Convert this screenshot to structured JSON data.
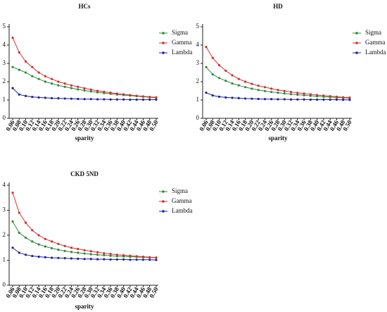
{
  "chart_data": [
    {
      "type": "line",
      "title": "HCs",
      "x_label": "sparity",
      "x": [
        0.06,
        0.08,
        0.1,
        0.12,
        0.14,
        0.16,
        0.18,
        0.2,
        0.22,
        0.24,
        0.26,
        0.28,
        0.3,
        0.32,
        0.34,
        0.36,
        0.38,
        0.4,
        0.42,
        0.44,
        0.46,
        0.48,
        0.5
      ],
      "xlim": [
        0.06,
        0.5
      ],
      "xticks": [
        0.06,
        0.08,
        {
          "value": 0.1,
          "label": "0.10"
        },
        0.12,
        0.14,
        0.16,
        0.18,
        {
          "value": 0.2,
          "label": "0.20"
        },
        0.22,
        0.24,
        0.26,
        0.28,
        {
          "value": 0.3,
          "label": "0.30"
        },
        0.32,
        0.34,
        0.36,
        0.38,
        {
          "value": 0.4,
          "label": "0.40"
        },
        0.42,
        0.44,
        0.46,
        0.48,
        {
          "value": 0.5,
          "label": "0.50"
        }
      ],
      "ylim": [
        0,
        5
      ],
      "yticks": [
        0,
        1,
        2,
        3,
        4,
        5
      ],
      "series": [
        {
          "name": "Sigma",
          "color": "#2e8b3e",
          "values": [
            2.8,
            2.65,
            2.5,
            2.3,
            2.15,
            2.0,
            1.9,
            1.8,
            1.72,
            1.65,
            1.58,
            1.52,
            1.47,
            1.42,
            1.38,
            1.34,
            1.3,
            1.27,
            1.24,
            1.21,
            1.18,
            1.15,
            1.12
          ]
        },
        {
          "name": "Gamma",
          "color": "#d03030",
          "values": [
            4.4,
            3.6,
            3.1,
            2.8,
            2.5,
            2.3,
            2.15,
            2.0,
            1.9,
            1.8,
            1.72,
            1.64,
            1.57,
            1.5,
            1.45,
            1.4,
            1.35,
            1.31,
            1.27,
            1.23,
            1.2,
            1.17,
            1.15
          ]
        },
        {
          "name": "Lambda",
          "color": "#2020a0",
          "values": [
            1.65,
            1.3,
            1.22,
            1.17,
            1.14,
            1.12,
            1.1,
            1.09,
            1.08,
            1.07,
            1.06,
            1.05,
            1.05,
            1.04,
            1.04,
            1.03,
            1.03,
            1.03,
            1.02,
            1.02,
            1.02,
            1.02,
            1.02
          ]
        }
      ]
    },
    {
      "type": "line",
      "title": "HD",
      "x_label": "sparity",
      "x": [
        0.06,
        0.08,
        0.1,
        0.12,
        0.14,
        0.16,
        0.18,
        0.2,
        0.22,
        0.24,
        0.26,
        0.28,
        0.3,
        0.32,
        0.34,
        0.36,
        0.38,
        0.4,
        0.42,
        0.44,
        0.46,
        0.48,
        0.5
      ],
      "xlim": [
        0.06,
        0.5
      ],
      "xticks": [
        0.06,
        0.08,
        {
          "value": 0.1,
          "label": "0.10"
        },
        0.12,
        0.14,
        0.16,
        0.18,
        {
          "value": 0.2,
          "label": "0.20"
        },
        0.22,
        0.24,
        0.26,
        0.28,
        {
          "value": 0.3,
          "label": "0.30"
        },
        0.32,
        0.34,
        0.36,
        0.38,
        {
          "value": 0.4,
          "label": "0.40"
        },
        0.42,
        0.44,
        0.46,
        0.48,
        {
          "value": 0.5,
          "label": "0.50"
        }
      ],
      "ylim": [
        0,
        5
      ],
      "yticks": [
        0,
        1,
        2,
        3,
        4,
        5
      ],
      "series": [
        {
          "name": "Sigma",
          "color": "#2e8b3e",
          "values": [
            2.8,
            2.4,
            2.2,
            2.05,
            1.9,
            1.8,
            1.7,
            1.62,
            1.55,
            1.49,
            1.44,
            1.4,
            1.36,
            1.32,
            1.29,
            1.26,
            1.23,
            1.2,
            1.18,
            1.16,
            1.14,
            1.12,
            1.1
          ]
        },
        {
          "name": "Gamma",
          "color": "#d03030",
          "values": [
            3.9,
            3.3,
            2.9,
            2.6,
            2.35,
            2.15,
            2.0,
            1.88,
            1.78,
            1.7,
            1.62,
            1.55,
            1.49,
            1.44,
            1.39,
            1.35,
            1.31,
            1.27,
            1.24,
            1.21,
            1.18,
            1.15,
            1.13
          ]
        },
        {
          "name": "Lambda",
          "color": "#2020a0",
          "values": [
            1.4,
            1.25,
            1.18,
            1.14,
            1.12,
            1.1,
            1.08,
            1.07,
            1.06,
            1.05,
            1.05,
            1.04,
            1.04,
            1.03,
            1.03,
            1.03,
            1.02,
            1.02,
            1.02,
            1.02,
            1.02,
            1.01,
            1.01
          ]
        }
      ]
    },
    {
      "type": "line",
      "title": "CKD 5ND",
      "x_label": "sparity",
      "x": [
        0.06,
        0.08,
        0.1,
        0.12,
        0.14,
        0.16,
        0.18,
        0.2,
        0.22,
        0.24,
        0.26,
        0.28,
        0.3,
        0.32,
        0.34,
        0.36,
        0.38,
        0.4,
        0.42,
        0.44,
        0.46,
        0.48,
        0.5
      ],
      "xlim": [
        0.06,
        0.5
      ],
      "xticks": [
        0.06,
        0.08,
        {
          "value": 0.1,
          "label": "0.10"
        },
        0.12,
        0.14,
        0.16,
        0.18,
        {
          "value": 0.2,
          "label": "0.20"
        },
        0.22,
        0.24,
        0.26,
        0.28,
        {
          "value": 0.3,
          "label": "0.30"
        },
        0.32,
        0.34,
        0.36,
        0.38,
        {
          "value": 0.4,
          "label": "0.40"
        },
        0.42,
        0.44,
        0.46,
        0.48,
        {
          "value": 0.5,
          "label": "0.50"
        }
      ],
      "ylim": [
        0,
        4
      ],
      "yticks": [
        0,
        1,
        2,
        3,
        4
      ],
      "series": [
        {
          "name": "Sigma",
          "color": "#2e8b3e",
          "values": [
            2.55,
            2.1,
            1.9,
            1.75,
            1.63,
            1.55,
            1.48,
            1.42,
            1.37,
            1.33,
            1.3,
            1.27,
            1.24,
            1.22,
            1.2,
            1.18,
            1.16,
            1.15,
            1.14,
            1.13,
            1.12,
            1.11,
            1.1
          ]
        },
        {
          "name": "Gamma",
          "color": "#d03030",
          "values": [
            3.7,
            2.9,
            2.5,
            2.2,
            2.0,
            1.85,
            1.75,
            1.65,
            1.57,
            1.5,
            1.45,
            1.4,
            1.36,
            1.32,
            1.28,
            1.25,
            1.22,
            1.2,
            1.18,
            1.16,
            1.14,
            1.12,
            1.11
          ]
        },
        {
          "name": "Lambda",
          "color": "#2020a0",
          "values": [
            1.5,
            1.3,
            1.22,
            1.17,
            1.14,
            1.12,
            1.1,
            1.09,
            1.08,
            1.07,
            1.06,
            1.05,
            1.05,
            1.04,
            1.04,
            1.03,
            1.03,
            1.03,
            1.02,
            1.02,
            1.02,
            1.02,
            1.01
          ]
        }
      ]
    }
  ]
}
